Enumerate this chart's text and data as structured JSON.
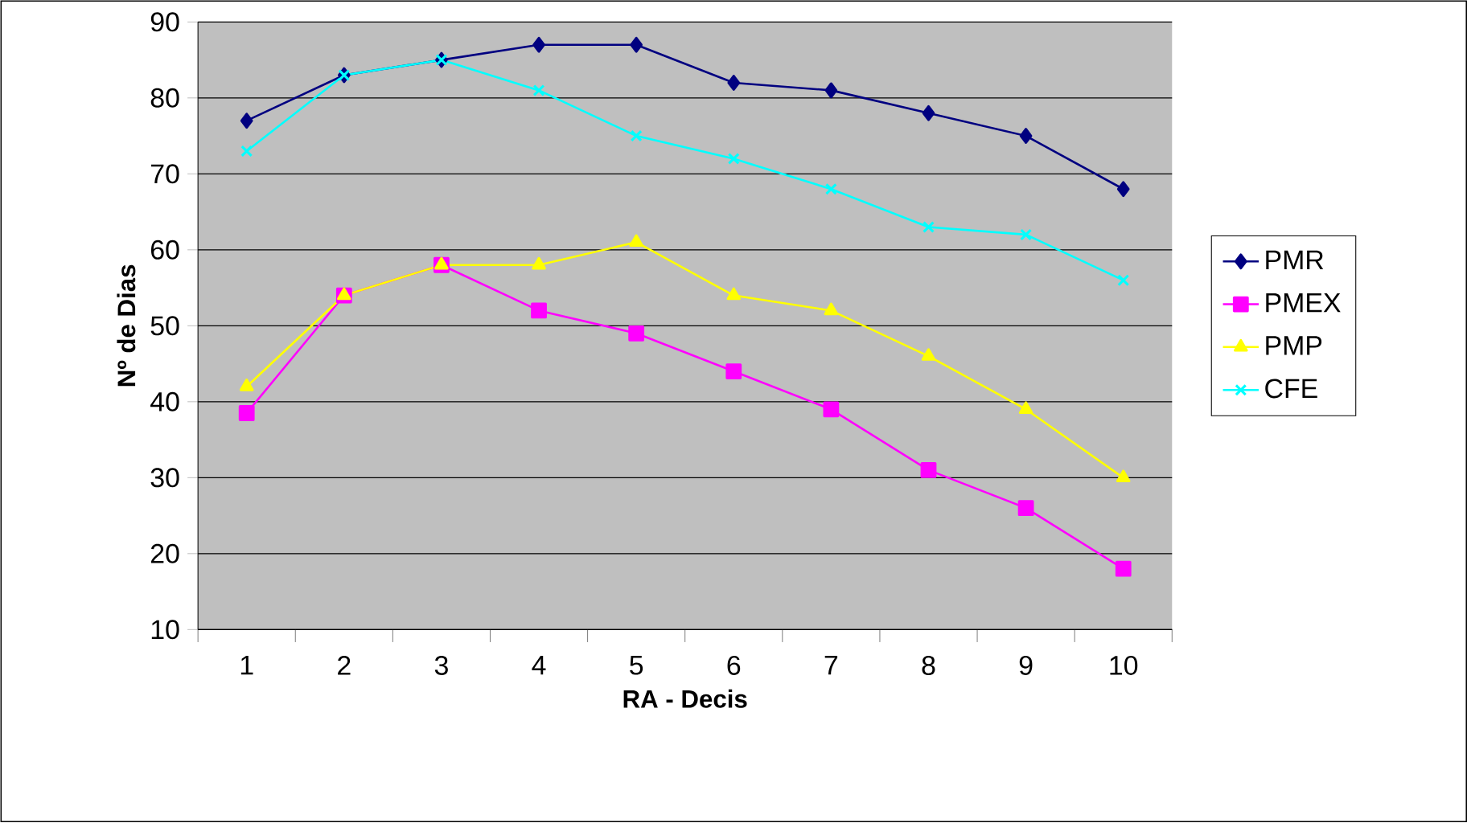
{
  "chart_data": {
    "type": "line",
    "xlabel": "RA - Decis",
    "ylabel": "Nº de Dias",
    "categories": [
      "1",
      "2",
      "3",
      "4",
      "5",
      "6",
      "7",
      "8",
      "9",
      "10"
    ],
    "series": [
      {
        "name": "PMR",
        "color": "#000080",
        "marker": "diamond",
        "values": [
          77,
          83,
          85,
          87,
          87,
          82,
          81,
          78,
          75,
          68
        ]
      },
      {
        "name": "PMEX",
        "color": "#ff00ff",
        "marker": "square",
        "values": [
          38.5,
          54,
          58,
          52,
          49,
          44,
          39,
          31,
          26,
          18
        ]
      },
      {
        "name": "PMP",
        "color": "#ffff00",
        "marker": "triangle",
        "values": [
          42,
          54,
          58,
          58,
          61,
          54,
          52,
          46,
          39,
          30
        ]
      },
      {
        "name": "CFE",
        "color": "#00ffff",
        "marker": "cross",
        "values": [
          73,
          83,
          85,
          81,
          75,
          72,
          68,
          63,
          62,
          56
        ]
      }
    ],
    "ylim": [
      10,
      90
    ],
    "yticks": [
      10,
      20,
      30,
      40,
      50,
      60,
      70,
      80,
      90
    ],
    "grid": "y",
    "legend": "right"
  }
}
